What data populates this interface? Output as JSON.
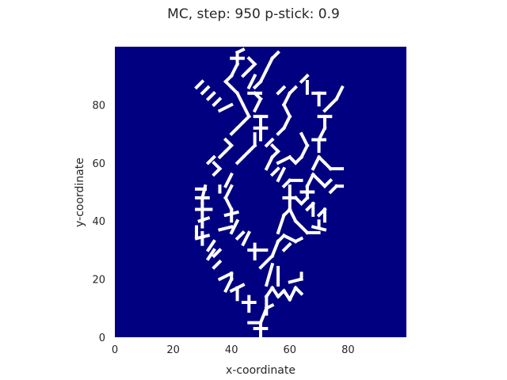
{
  "chart_data": {
    "type": "heatmap",
    "title": "MC, step: 950 p-stick: 0.9",
    "xlabel": "x-coordinate",
    "ylabel": "y-coordinate",
    "xlim": [
      0,
      100
    ],
    "ylim": [
      0,
      100
    ],
    "xticks": [
      0,
      20,
      40,
      60,
      80
    ],
    "yticks": [
      0,
      20,
      40,
      60,
      80
    ],
    "grid": false,
    "colors": {
      "background": "#000080",
      "cluster": "#ffffff"
    },
    "segments": [
      [
        50,
        0,
        50,
        5
      ],
      [
        48,
        3,
        52,
        3
      ],
      [
        46,
        5,
        50,
        5
      ],
      [
        50,
        5,
        52,
        10
      ],
      [
        52,
        8,
        52,
        14
      ],
      [
        52,
        10,
        54,
        11
      ],
      [
        46,
        9,
        46,
        14
      ],
      [
        44,
        12,
        48,
        12
      ],
      [
        42,
        13,
        42,
        17
      ],
      [
        40,
        16,
        44,
        18
      ],
      [
        38,
        16,
        40,
        20
      ],
      [
        40,
        20,
        40,
        22
      ],
      [
        36,
        20,
        40,
        22
      ],
      [
        34,
        24,
        36,
        26
      ],
      [
        32,
        27,
        34,
        30
      ],
      [
        34,
        28,
        36,
        30
      ],
      [
        32,
        30,
        34,
        33
      ],
      [
        30,
        32,
        30,
        36
      ],
      [
        28,
        34,
        32,
        35
      ],
      [
        28,
        35,
        28,
        38
      ],
      [
        30,
        38,
        30,
        40
      ],
      [
        29,
        40,
        32,
        41
      ],
      [
        30,
        41,
        30,
        46
      ],
      [
        28,
        44,
        33,
        44
      ],
      [
        30,
        46,
        30,
        48
      ],
      [
        28,
        48,
        32,
        48
      ],
      [
        30,
        48,
        31,
        52
      ],
      [
        28,
        51,
        31,
        51
      ],
      [
        52,
        14,
        54,
        17
      ],
      [
        54,
        17,
        56,
        14
      ],
      [
        56,
        14,
        58,
        16
      ],
      [
        58,
        16,
        60,
        13
      ],
      [
        60,
        13,
        62,
        17
      ],
      [
        62,
        17,
        64,
        15
      ],
      [
        60,
        19,
        64,
        20
      ],
      [
        64,
        20,
        64,
        22
      ],
      [
        56,
        18,
        56,
        24
      ],
      [
        52,
        18,
        54,
        25
      ],
      [
        50,
        24,
        54,
        28
      ],
      [
        54,
        28,
        56,
        33
      ],
      [
        48,
        27,
        48,
        32
      ],
      [
        46,
        30,
        52,
        30
      ],
      [
        44,
        32,
        46,
        36
      ],
      [
        42,
        34,
        44,
        36
      ],
      [
        40,
        36,
        42,
        40
      ],
      [
        36,
        37,
        40,
        38
      ],
      [
        40,
        40,
        40,
        44
      ],
      [
        38,
        42,
        42,
        43
      ],
      [
        40,
        44,
        38,
        48
      ],
      [
        38,
        48,
        40,
        52
      ],
      [
        36,
        50,
        36,
        52
      ],
      [
        38,
        52,
        40,
        56
      ],
      [
        56,
        33,
        58,
        35
      ],
      [
        58,
        35,
        62,
        33
      ],
      [
        62,
        33,
        64,
        34
      ],
      [
        58,
        30,
        60,
        32
      ],
      [
        56,
        36,
        58,
        42
      ],
      [
        58,
        42,
        60,
        44
      ],
      [
        60,
        44,
        62,
        40
      ],
      [
        62,
        40,
        64,
        38
      ],
      [
        64,
        38,
        66,
        36
      ],
      [
        66,
        36,
        70,
        36
      ],
      [
        68,
        38,
        72,
        37
      ],
      [
        70,
        38,
        70,
        40
      ],
      [
        60,
        44,
        60,
        48
      ],
      [
        58,
        48,
        62,
        48
      ],
      [
        62,
        48,
        64,
        46
      ],
      [
        64,
        46,
        66,
        48
      ],
      [
        66,
        48,
        66,
        52
      ],
      [
        64,
        50,
        68,
        50
      ],
      [
        66,
        52,
        68,
        56
      ],
      [
        68,
        56,
        70,
        54
      ],
      [
        70,
        54,
        72,
        52
      ],
      [
        72,
        52,
        74,
        54
      ],
      [
        74,
        50,
        76,
        52
      ],
      [
        76,
        52,
        78,
        52
      ],
      [
        66,
        44,
        68,
        46
      ],
      [
        68,
        46,
        68,
        42
      ],
      [
        70,
        42,
        72,
        44
      ],
      [
        72,
        44,
        72,
        40
      ],
      [
        60,
        48,
        60,
        52
      ],
      [
        58,
        52,
        60,
        54
      ],
      [
        60,
        54,
        64,
        54
      ],
      [
        56,
        54,
        58,
        58
      ],
      [
        54,
        56,
        56,
        58
      ],
      [
        52,
        58,
        54,
        62
      ],
      [
        54,
        62,
        56,
        64
      ],
      [
        56,
        64,
        54,
        66
      ],
      [
        52,
        66,
        54,
        68
      ],
      [
        50,
        68,
        50,
        72
      ],
      [
        48,
        72,
        52,
        72
      ],
      [
        50,
        72,
        50,
        76
      ],
      [
        48,
        76,
        52,
        76
      ],
      [
        48,
        78,
        50,
        82
      ],
      [
        50,
        82,
        48,
        84
      ],
      [
        46,
        84,
        50,
        84
      ],
      [
        48,
        86,
        50,
        88
      ],
      [
        50,
        88,
        52,
        92
      ],
      [
        52,
        92,
        54,
        96
      ],
      [
        54,
        96,
        56,
        98
      ],
      [
        68,
        58,
        70,
        62
      ],
      [
        70,
        62,
        72,
        60
      ],
      [
        72,
        60,
        74,
        58
      ],
      [
        74,
        58,
        78,
        58
      ],
      [
        70,
        64,
        70,
        68
      ],
      [
        68,
        68,
        72,
        68
      ],
      [
        70,
        68,
        72,
        72
      ],
      [
        72,
        72,
        72,
        76
      ],
      [
        70,
        76,
        74,
        76
      ],
      [
        72,
        78,
        74,
        80
      ],
      [
        74,
        80,
        76,
        82
      ],
      [
        76,
        82,
        78,
        86
      ],
      [
        70,
        80,
        70,
        84
      ],
      [
        68,
        84,
        72,
        84
      ],
      [
        66,
        84,
        66,
        88
      ],
      [
        64,
        88,
        66,
        90
      ],
      [
        40,
        70,
        42,
        72
      ],
      [
        42,
        72,
        44,
        74
      ],
      [
        44,
        74,
        46,
        76
      ],
      [
        46,
        76,
        44,
        80
      ],
      [
        44,
        80,
        42,
        84
      ],
      [
        42,
        84,
        40,
        86
      ],
      [
        40,
        86,
        38,
        88
      ],
      [
        38,
        88,
        40,
        90
      ],
      [
        40,
        90,
        42,
        94
      ],
      [
        42,
        94,
        42,
        98
      ],
      [
        40,
        96,
        44,
        96
      ],
      [
        42,
        98,
        44,
        99
      ],
      [
        36,
        78,
        40,
        80
      ],
      [
        34,
        80,
        36,
        82
      ],
      [
        32,
        82,
        34,
        84
      ],
      [
        30,
        84,
        32,
        86
      ],
      [
        28,
        86,
        30,
        88
      ],
      [
        56,
        60,
        60,
        62
      ],
      [
        60,
        62,
        62,
        60
      ],
      [
        62,
        60,
        64,
        62
      ],
      [
        64,
        62,
        66,
        66
      ],
      [
        66,
        66,
        64,
        70
      ],
      [
        46,
        86,
        48,
        90
      ],
      [
        44,
        90,
        46,
        92
      ],
      [
        46,
        92,
        48,
        94
      ],
      [
        48,
        94,
        46,
        96
      ],
      [
        56,
        70,
        58,
        72
      ],
      [
        58,
        72,
        60,
        76
      ],
      [
        60,
        76,
        58,
        80
      ],
      [
        58,
        80,
        60,
        84
      ],
      [
        60,
        84,
        62,
        86
      ],
      [
        56,
        84,
        58,
        86
      ],
      [
        34,
        56,
        36,
        58
      ],
      [
        36,
        58,
        34,
        60
      ],
      [
        32,
        60,
        34,
        62
      ],
      [
        36,
        62,
        38,
        64
      ],
      [
        38,
        64,
        40,
        66
      ],
      [
        40,
        66,
        38,
        68
      ],
      [
        42,
        60,
        44,
        62
      ],
      [
        44,
        62,
        46,
        64
      ],
      [
        46,
        64,
        48,
        66
      ],
      [
        48,
        66,
        48,
        70
      ]
    ]
  }
}
